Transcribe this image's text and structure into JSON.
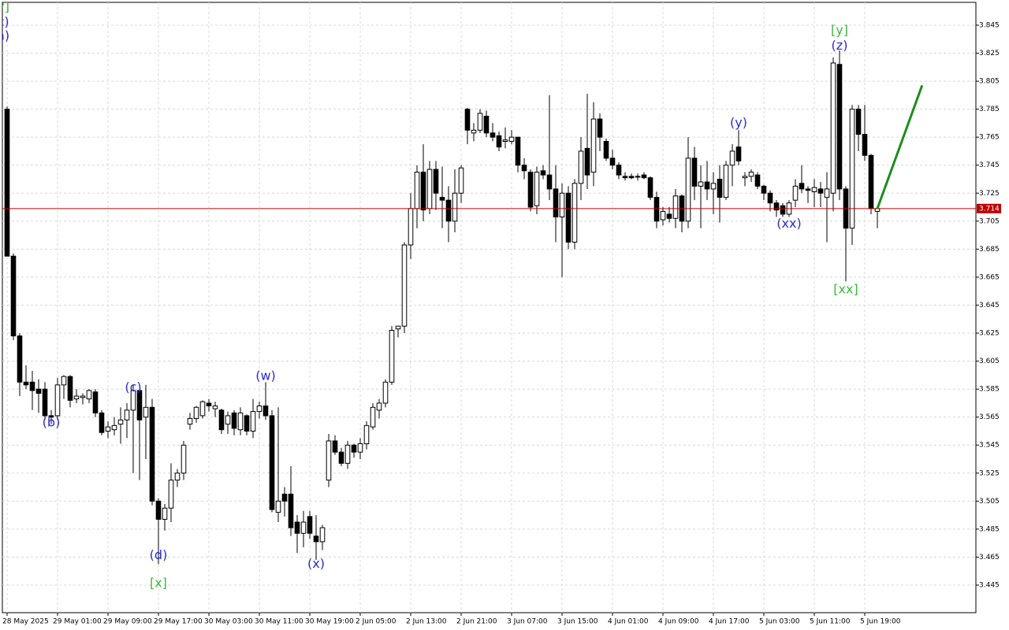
{
  "chart_data": {
    "type": "candlestick",
    "open": [
      3.785,
      3.68,
      3.623,
      3.59,
      3.59,
      3.585,
      3.585,
      3.566,
      3.566,
      3.588,
      3.594,
      3.578,
      3.579,
      3.578,
      3.583,
      3.568,
      3.555,
      3.556,
      3.56,
      3.563,
      3.57,
      3.584,
      3.565,
      3.572,
      3.505,
      3.492,
      3.5,
      3.52,
      3.525,
      3.56,
      3.564,
      3.566,
      3.575,
      3.571,
      3.57,
      3.56,
      3.568,
      3.556,
      3.566,
      3.555,
      3.569,
      3.573,
      3.566,
      3.497,
      3.51,
      3.51,
      3.49,
      3.482,
      3.494,
      3.48,
      3.476,
      3.52,
      3.548,
      3.54,
      3.532,
      3.545,
      3.54,
      3.546,
      3.558,
      3.57,
      3.575,
      3.59,
      3.628,
      3.63,
      3.688,
      3.714,
      3.74,
      3.714,
      3.742,
      3.722,
      3.72,
      3.705,
      3.725,
      3.785,
      3.768,
      3.77,
      3.78,
      3.768,
      3.766,
      3.762,
      3.762,
      3.765,
      3.745,
      3.74,
      3.716,
      3.741,
      3.738,
      3.728,
      3.708,
      3.725,
      3.69,
      3.732,
      3.757,
      3.74,
      3.778,
      3.762,
      3.75,
      3.745,
      3.737,
      3.737,
      3.737,
      3.738,
      3.736,
      3.722,
      3.706,
      3.71,
      3.707,
      3.723,
      3.705,
      3.75,
      3.73,
      3.733,
      3.728,
      3.735,
      3.722,
      3.745,
      3.758,
      3.736,
      3.737,
      3.738,
      3.73,
      3.725,
      3.718,
      3.716,
      3.71,
      3.72,
      3.732,
      3.728,
      3.726,
      3.728,
      3.722,
      3.725,
      3.817,
      3.728,
      3.7,
      3.785,
      3.767,
      3.752,
      3.712
    ],
    "high": [
      3.787,
      3.682,
      3.625,
      3.602,
      3.598,
      3.592,
      3.59,
      3.57,
      3.593,
      3.595,
      3.595,
      3.585,
      3.582,
      3.585,
      3.585,
      3.57,
      3.562,
      3.565,
      3.572,
      3.575,
      3.588,
      3.585,
      3.588,
      3.578,
      3.507,
      3.503,
      3.532,
      3.528,
      3.548,
      3.568,
      3.573,
      3.577,
      3.578,
      3.576,
      3.571,
      3.569,
      3.57,
      3.572,
      3.567,
      3.578,
      3.576,
      3.59,
      3.57,
      3.572,
      3.515,
      3.53,
      3.495,
      3.498,
      3.498,
      3.495,
      3.488,
      3.553,
      3.552,
      3.543,
      3.548,
      3.546,
      3.55,
      3.562,
      3.575,
      3.578,
      3.592,
      3.63,
      3.63,
      3.69,
      3.725,
      3.745,
      3.76,
      3.748,
      3.748,
      3.744,
      3.73,
      3.742,
      3.745,
      3.786,
      3.775,
      3.785,
      3.784,
      3.775,
      3.769,
      3.772,
      3.77,
      3.765,
      3.75,
      3.742,
      3.744,
      3.745,
      3.795,
      3.745,
      3.732,
      3.73,
      3.735,
      3.765,
      3.796,
      3.79,
      3.782,
      3.764,
      3.756,
      3.747,
      3.74,
      3.739,
      3.739,
      3.74,
      3.737,
      3.726,
      3.715,
      3.715,
      3.728,
      3.724,
      3.765,
      3.758,
      3.745,
      3.748,
      3.74,
      3.745,
      3.748,
      3.76,
      3.77,
      3.74,
      3.742,
      3.74,
      3.731,
      3.727,
      3.72,
      3.718,
      3.72,
      3.735,
      3.745,
      3.73,
      3.735,
      3.733,
      3.74,
      3.822,
      3.827,
      3.73,
      3.788,
      3.788,
      3.788,
      3.753,
      3.716
    ],
    "low": [
      3.68,
      3.62,
      3.58,
      3.585,
      3.57,
      3.568,
      3.563,
      3.56,
      3.563,
      3.578,
      3.572,
      3.575,
      3.574,
      3.575,
      3.565,
      3.552,
      3.55,
      3.552,
      3.546,
      3.55,
      3.525,
      3.52,
      3.535,
      3.502,
      3.46,
      3.484,
      3.49,
      3.515,
      3.52,
      3.556,
      3.561,
      3.564,
      3.569,
      3.565,
      3.553,
      3.553,
      3.552,
      3.552,
      3.552,
      3.55,
      3.564,
      3.563,
      3.497,
      3.49,
      3.494,
      3.48,
      3.468,
      3.472,
      3.478,
      3.463,
      3.47,
      3.515,
      3.538,
      3.53,
      3.528,
      3.536,
      3.535,
      3.542,
      3.556,
      3.564,
      3.572,
      3.588,
      3.622,
      3.625,
      3.678,
      3.7,
      3.705,
      3.71,
      3.713,
      3.7,
      3.69,
      3.697,
      3.718,
      3.76,
      3.762,
      3.768,
      3.765,
      3.762,
      3.755,
      3.757,
      3.76,
      3.74,
      3.735,
      3.712,
      3.71,
      3.735,
      3.72,
      3.69,
      3.665,
      3.685,
      3.685,
      3.72,
      3.728,
      3.73,
      3.755,
      3.748,
      3.742,
      3.735,
      3.734,
      3.735,
      3.734,
      3.735,
      3.72,
      3.7,
      3.702,
      3.704,
      3.7,
      3.697,
      3.7,
      3.72,
      3.7,
      3.72,
      3.71,
      3.704,
      3.72,
      3.73,
      3.745,
      3.73,
      3.733,
      3.728,
      3.72,
      3.712,
      3.708,
      3.708,
      3.708,
      3.715,
      3.725,
      3.718,
      3.715,
      3.715,
      3.69,
      3.712,
      3.72,
      3.662,
      3.688,
      3.755,
      3.748,
      3.71,
      3.7
    ],
    "close": [
      3.68,
      3.623,
      3.59,
      3.588,
      3.584,
      3.582,
      3.566,
      3.565,
      3.588,
      3.594,
      3.577,
      3.58,
      3.58,
      3.584,
      3.568,
      3.554,
      3.558,
      3.559,
      3.563,
      3.57,
      3.584,
      3.563,
      3.572,
      3.505,
      3.492,
      3.5,
      3.52,
      3.525,
      3.545,
      3.564,
      3.572,
      3.576,
      3.573,
      3.573,
      3.556,
      3.566,
      3.557,
      3.568,
      3.555,
      3.569,
      3.573,
      3.566,
      3.499,
      3.505,
      3.505,
      3.486,
      3.482,
      3.49,
      3.482,
      3.476,
      3.486,
      3.548,
      3.54,
      3.532,
      3.545,
      3.54,
      3.546,
      3.559,
      3.572,
      3.575,
      3.59,
      3.627,
      3.63,
      3.688,
      3.714,
      3.74,
      3.713,
      3.742,
      3.725,
      3.72,
      3.705,
      3.725,
      3.743,
      3.77,
      3.77,
      3.782,
      3.768,
      3.765,
      3.758,
      3.763,
      3.765,
      3.745,
      3.741,
      3.715,
      3.74,
      3.738,
      3.728,
      3.708,
      3.725,
      3.69,
      3.732,
      3.755,
      3.738,
      3.778,
      3.765,
      3.75,
      3.745,
      3.738,
      3.736,
      3.736,
      3.737,
      3.736,
      3.722,
      3.705,
      3.712,
      3.707,
      3.723,
      3.705,
      3.75,
      3.73,
      3.733,
      3.728,
      3.732,
      3.722,
      3.745,
      3.755,
      3.748,
      3.737,
      3.74,
      3.73,
      3.725,
      3.718,
      3.713,
      3.71,
      3.718,
      3.73,
      3.728,
      3.727,
      3.729,
      3.725,
      3.728,
      3.818,
      3.728,
      3.7,
      3.785,
      3.767,
      3.752,
      3.714,
      3.714
    ],
    "xlim": [
      -0.75,
      153.625
    ],
    "xticks": [
      {
        "value": 0,
        "label": "28 May 2025"
      },
      {
        "value": 8,
        "label": "29 May 01:00"
      },
      {
        "value": 16,
        "label": "29 May 09:00"
      },
      {
        "value": 24,
        "label": "29 May 17:00"
      },
      {
        "value": 32,
        "label": "30 May 03:00"
      },
      {
        "value": 40,
        "label": "30 May 11:00"
      },
      {
        "value": 48,
        "label": "30 May 19:00"
      },
      {
        "value": 56,
        "label": "2 Jun 05:00"
      },
      {
        "value": 64,
        "label": "2 Jun 13:00"
      },
      {
        "value": 72,
        "label": "2 Jun 21:00"
      },
      {
        "value": 80,
        "label": "3 Jun 07:00"
      },
      {
        "value": 88,
        "label": "3 Jun 15:00"
      },
      {
        "value": 96,
        "label": "4 Jun 01:00"
      },
      {
        "value": 104,
        "label": "4 Jun 09:00"
      },
      {
        "value": 112,
        "label": "4 Jun 17:00"
      },
      {
        "value": 120,
        "label": "5 Jun 03:00"
      },
      {
        "value": 128,
        "label": "5 Jun 11:00"
      },
      {
        "value": 136,
        "label": "5 Jun 19:00"
      }
    ],
    "ylim": [
      3.4253,
      3.8613
    ],
    "yticks": [
      3.445,
      3.465,
      3.485,
      3.505,
      3.525,
      3.545,
      3.565,
      3.585,
      3.605,
      3.625,
      3.645,
      3.665,
      3.685,
      3.705,
      3.725,
      3.745,
      3.765,
      3.785,
      3.805,
      3.825,
      3.845
    ],
    "grid": true,
    "current_price": 3.714,
    "current_price_color": "#c00000",
    "projection": {
      "x": [
        138,
        145.1
      ],
      "values": [
        3.714,
        3.802
      ],
      "color": "#1e8c1e"
    },
    "annotations": [
      {
        "text": "[y]",
        "x": -1,
        "y": 3.858,
        "color": "#3cb93c"
      },
      {
        "text": "(c)",
        "x": -1,
        "y": 3.847,
        "color": "#2b2bd0"
      },
      {
        "text": "(a)",
        "x": -1,
        "y": 3.837,
        "color": "#2b2bd0"
      },
      {
        "text": "(b)",
        "x": 7,
        "y": 3.561,
        "color": "#2b2bd0"
      },
      {
        "text": "(c)",
        "x": 20,
        "y": 3.586,
        "color": "#2b2bd0"
      },
      {
        "text": "(d)",
        "x": 24,
        "y": 3.466,
        "color": "#2b2bd0"
      },
      {
        "text": "[x]",
        "x": 24,
        "y": 3.446,
        "color": "#3cb93c"
      },
      {
        "text": "(w)",
        "x": 41,
        "y": 3.594,
        "color": "#2b2bd0"
      },
      {
        "text": "(x)",
        "x": 49,
        "y": 3.46,
        "color": "#2b2bd0"
      },
      {
        "text": "(y)",
        "x": 116,
        "y": 3.775,
        "color": "#2b2bd0"
      },
      {
        "text": "(xx)",
        "x": 124,
        "y": 3.703,
        "color": "#2b2bd0"
      },
      {
        "text": "(z)",
        "x": 132,
        "y": 3.83,
        "color": "#2b2bd0"
      },
      {
        "text": "[y]",
        "x": 132,
        "y": 3.841,
        "color": "#3cb93c"
      },
      {
        "text": "[xx]",
        "x": 133,
        "y": 3.656,
        "color": "#3cb93c"
      }
    ]
  }
}
